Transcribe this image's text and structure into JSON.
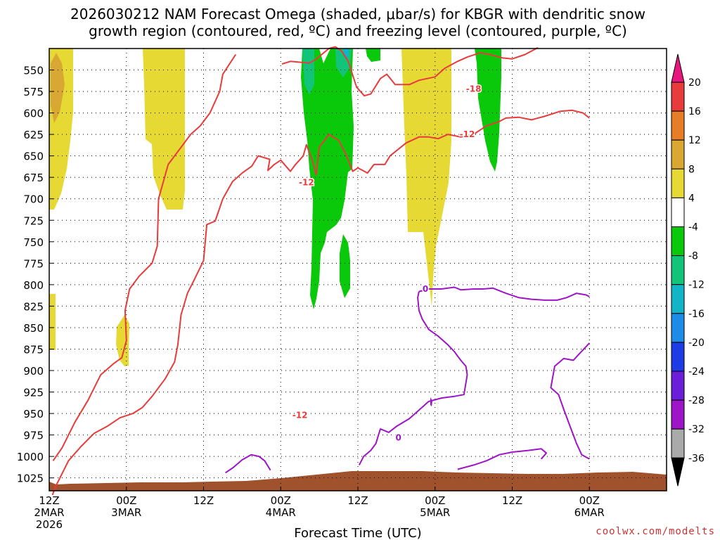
{
  "chart_data": {
    "type": "heatmap",
    "title_lines": [
      "2026030212 NAM Forecast Omega (shaded, μbar/s) for KBGR with dendritic snow",
      "growth region (contoured, red, ºC) and freezing level (contoured, purple, ºC)"
    ],
    "xlabel": "Forecast Time (UTC)",
    "credit": "coolwx.com/modelts",
    "x_range_hours": [
      0,
      96
    ],
    "x_ticks": [
      {
        "h": 0,
        "lines": [
          "12Z",
          "2MAR",
          "2026"
        ]
      },
      {
        "h": 12,
        "lines": [
          "00Z",
          "3MAR"
        ]
      },
      {
        "h": 24,
        "lines": [
          "12Z"
        ]
      },
      {
        "h": 36,
        "lines": [
          "00Z",
          "4MAR"
        ]
      },
      {
        "h": 48,
        "lines": [
          "12Z"
        ]
      },
      {
        "h": 60,
        "lines": [
          "00Z",
          "5MAR"
        ]
      },
      {
        "h": 72,
        "lines": [
          "12Z"
        ]
      },
      {
        "h": 84,
        "lines": [
          "00Z",
          "6MAR"
        ]
      }
    ],
    "y_axis_hPa": [
      525,
      1040
    ],
    "y_ticks": [
      550,
      575,
      600,
      625,
      650,
      675,
      700,
      725,
      750,
      775,
      800,
      825,
      850,
      875,
      900,
      925,
      950,
      975,
      1000,
      1025
    ],
    "colorbar": {
      "labels": [
        "20",
        "16",
        "12",
        "8",
        "4",
        "-4",
        "-8",
        "-12",
        "-16",
        "-20",
        "-24",
        "-28",
        "-32",
        "-36"
      ],
      "colors": [
        "#e8157d",
        "#e83b3b",
        "#e87d28",
        "#d9a832",
        "#e6d934",
        "#ffffff",
        "#0ac80a",
        "#12c47a",
        "#12b4c8",
        "#1e8ce6",
        "#1e3ce6",
        "#6a1ed8",
        "#9e14c8",
        "#aaaaaa",
        "#000000"
      ]
    },
    "contour_labels": [
      {
        "text": "-18",
        "color": "#e83b3b"
      },
      {
        "text": "-12",
        "color": "#e83b3b"
      },
      {
        "text": "-12",
        "color": "#e83b3b"
      },
      {
        "text": "-12",
        "color": "#e83b3b"
      },
      {
        "text": "0",
        "color": "#9e14c8"
      },
      {
        "text": "0",
        "color": "#9e14c8"
      }
    ],
    "series": [
      {
        "name": "dgz_-12C_lower",
        "color": "#e83b3b",
        "points": [
          [
            0.6,
            1005
          ],
          [
            2,
            990
          ],
          [
            4,
            960
          ],
          [
            6,
            935
          ],
          [
            8,
            905
          ],
          [
            10,
            892
          ],
          [
            11.3,
            885
          ],
          [
            12,
            865
          ],
          [
            11.8,
            830
          ],
          [
            12.5,
            805
          ],
          [
            14,
            790
          ],
          [
            16,
            775
          ],
          [
            16.8,
            755
          ],
          [
            17,
            700
          ],
          [
            18.5,
            660
          ],
          [
            20,
            645
          ],
          [
            22,
            625
          ],
          [
            23.5,
            615
          ],
          [
            25,
            600
          ],
          [
            26.5,
            575
          ],
          [
            27,
            555
          ],
          [
            29,
            532
          ]
        ]
      },
      {
        "name": "dgz_-12C_upper",
        "color": "#e83b3b",
        "points": [
          [
            0.5,
            1045
          ],
          [
            1,
            1035
          ],
          [
            2,
            1020
          ],
          [
            3,
            1005
          ],
          [
            5,
            988
          ],
          [
            7,
            973
          ],
          [
            9,
            965
          ],
          [
            11,
            955
          ],
          [
            13,
            950
          ],
          [
            14.5,
            943
          ],
          [
            16,
            930
          ],
          [
            18,
            910
          ],
          [
            19.5,
            890
          ],
          [
            20,
            870
          ],
          [
            20.5,
            835
          ],
          [
            21.5,
            810
          ],
          [
            22.5,
            795
          ],
          [
            24,
            772
          ],
          [
            24.5,
            730
          ],
          [
            25.8,
            726
          ],
          [
            27,
            700
          ],
          [
            28.5,
            680
          ],
          [
            30,
            670
          ],
          [
            31.5,
            662
          ],
          [
            32.5,
            650
          ],
          [
            34.3,
            654
          ],
          [
            34,
            667
          ],
          [
            35,
            660
          ],
          [
            36,
            655
          ],
          [
            37.5,
            668
          ],
          [
            38.3,
            660
          ],
          [
            39.5,
            650
          ],
          [
            40,
            637
          ],
          [
            40.9,
            655
          ],
          [
            41.5,
            672
          ],
          [
            42,
            640
          ],
          [
            43.5,
            625
          ],
          [
            45,
            632
          ],
          [
            46,
            646
          ],
          [
            47.2,
            668
          ],
          [
            48,
            664
          ],
          [
            49.5,
            670
          ],
          [
            50.5,
            660
          ],
          [
            52.2,
            660
          ],
          [
            53,
            650
          ],
          [
            55.5,
            635
          ],
          [
            57.5,
            628
          ],
          [
            59,
            628
          ],
          [
            60.5,
            630
          ],
          [
            62,
            625
          ],
          [
            64,
            628
          ],
          [
            66,
            625
          ],
          [
            68,
            615
          ],
          [
            70,
            610
          ],
          [
            71,
            606
          ],
          [
            73,
            605
          ],
          [
            75,
            608
          ],
          [
            77,
            604
          ],
          [
            79.5,
            598
          ],
          [
            81.3,
            597
          ],
          [
            83,
            600
          ],
          [
            84,
            606
          ]
        ]
      },
      {
        "name": "dgz_-18C",
        "color": "#e83b3b",
        "points": [
          [
            36.2,
            543
          ],
          [
            37.5,
            540
          ],
          [
            39,
            541
          ],
          [
            40.4,
            542
          ],
          [
            41.4,
            538
          ],
          [
            43.5,
            525
          ],
          [
            44.5,
            523
          ],
          [
            45.5,
            528
          ],
          [
            46.5,
            540
          ],
          [
            47.8,
            570
          ],
          [
            49,
            580
          ],
          [
            50,
            578
          ],
          [
            51.5,
            560
          ],
          [
            52.5,
            555
          ],
          [
            53.8,
            567
          ],
          [
            56,
            567
          ],
          [
            57.5,
            562
          ],
          [
            60,
            558
          ],
          [
            61.5,
            548
          ],
          [
            63.5,
            540
          ],
          [
            65,
            535
          ],
          [
            67,
            530
          ],
          [
            68.5,
            532
          ],
          [
            70.5,
            536
          ],
          [
            72,
            537
          ],
          [
            74,
            532
          ],
          [
            76,
            524
          ]
        ]
      },
      {
        "name": "freezing_0C_upper",
        "color": "#9e14c8",
        "points": [
          [
            57.5,
            808
          ],
          [
            59,
            805
          ],
          [
            61,
            805
          ],
          [
            63,
            803
          ],
          [
            64,
            806
          ],
          [
            66,
            805
          ],
          [
            67.5,
            805
          ],
          [
            69,
            804
          ],
          [
            71,
            810
          ],
          [
            73,
            815
          ],
          [
            75,
            817
          ],
          [
            77,
            818
          ],
          [
            79,
            818
          ],
          [
            80.5,
            815
          ],
          [
            82,
            810
          ],
          [
            83.5,
            812
          ],
          [
            84,
            814
          ]
        ]
      },
      {
        "name": "freezing_0C_right",
        "color": "#9e14c8",
        "points": [
          [
            84,
            868
          ],
          [
            82.5,
            880
          ],
          [
            81.5,
            888
          ],
          [
            80,
            886
          ],
          [
            78.6,
            895
          ],
          [
            78,
            920
          ],
          [
            79.2,
            928
          ],
          [
            80,
            945
          ],
          [
            81,
            965
          ],
          [
            82,
            985
          ],
          [
            82.8,
            998
          ],
          [
            84,
            1003
          ]
        ]
      },
      {
        "name": "freezing_0C_mid",
        "color": "#9e14c8",
        "points": [
          [
            57.5,
            808
          ],
          [
            57.3,
            815
          ],
          [
            57.5,
            830
          ],
          [
            58,
            840
          ],
          [
            59,
            852
          ],
          [
            60.5,
            860
          ],
          [
            62,
            870
          ],
          [
            63,
            878
          ],
          [
            64,
            888
          ],
          [
            64.8,
            895
          ],
          [
            65,
            905
          ],
          [
            64.5,
            928
          ],
          [
            63,
            930
          ],
          [
            61,
            932
          ],
          [
            59,
            936
          ],
          [
            57.5,
            946
          ],
          [
            56,
            956
          ],
          [
            54,
            965
          ],
          [
            52.8,
            972
          ],
          [
            51.5,
            968
          ],
          [
            51.2,
            975
          ],
          [
            50.8,
            985
          ],
          [
            50,
            993
          ],
          [
            48.9,
            1000
          ],
          [
            48.2,
            1010
          ]
        ]
      },
      {
        "name": "freezing_0C_low_right",
        "color": "#9e14c8",
        "points": [
          [
            63.5,
            1015
          ],
          [
            66,
            1010
          ],
          [
            68,
            1005
          ],
          [
            70,
            998
          ],
          [
            72,
            995
          ],
          [
            74.5,
            993
          ],
          [
            76.5,
            991
          ],
          [
            77.3,
            996
          ],
          [
            76.5,
            1003
          ]
        ]
      },
      {
        "name": "freezing_0C_low_left",
        "color": "#9e14c8",
        "points": [
          [
            27.4,
            1019
          ],
          [
            28.6,
            1013
          ],
          [
            30,
            1004
          ],
          [
            31.4,
            998
          ],
          [
            32.6,
            1000
          ],
          [
            33.5,
            1005
          ],
          [
            34.4,
            1016
          ]
        ]
      }
    ]
  }
}
